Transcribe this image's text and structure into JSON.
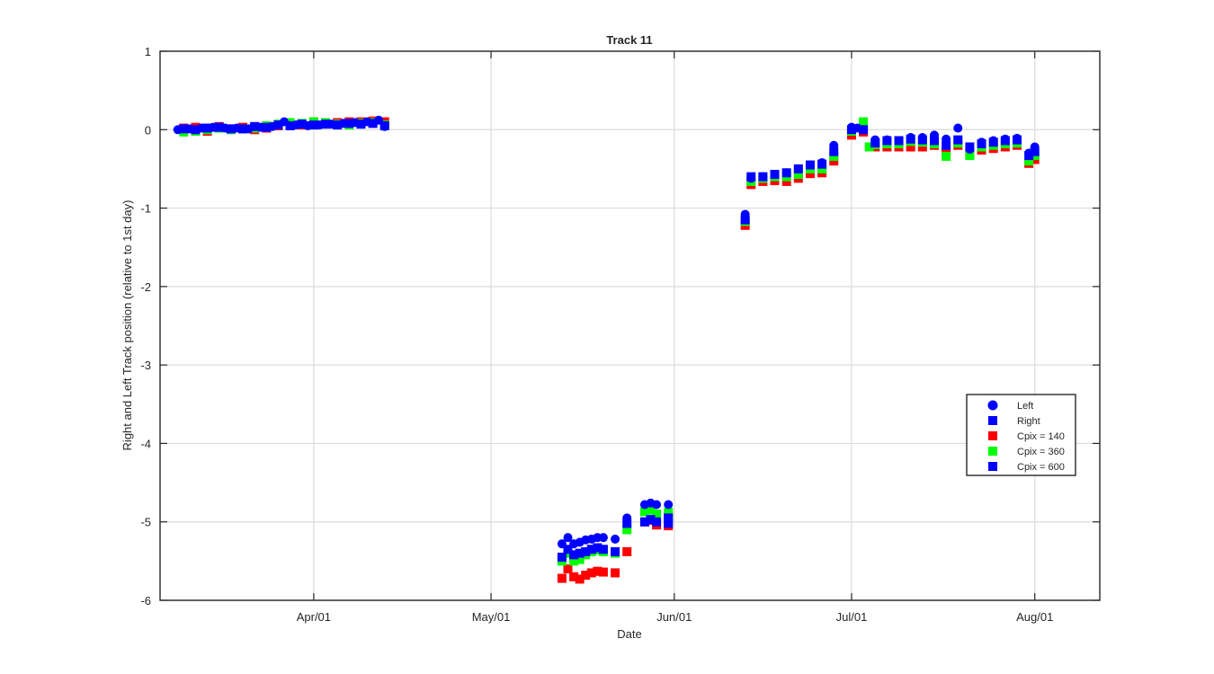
{
  "chart_data": {
    "type": "scatter",
    "title": "Track 11",
    "xlabel": "Date",
    "ylabel": "Right and Left Track position (relative to 1st day)",
    "x_axis_type": "date",
    "xlim": [
      "2015-03-06",
      "2015-08-12"
    ],
    "ylim": [
      -6,
      1
    ],
    "yticks": [
      1,
      0,
      -1,
      -2,
      -3,
      -4,
      -5,
      -6
    ],
    "xticks": [
      {
        "date": "2015-04-01",
        "label": "Apr/01"
      },
      {
        "date": "2015-05-01",
        "label": "May/01"
      },
      {
        "date": "2015-06-01",
        "label": "Jun/01"
      },
      {
        "date": "2015-07-01",
        "label": "Jul/01"
      },
      {
        "date": "2015-08-01",
        "label": "Aug/01"
      }
    ],
    "grid": true,
    "legend_position": "lower-right",
    "legend": [
      {
        "label": "Left",
        "marker": "circle",
        "color": "#0000ff"
      },
      {
        "label": "Right",
        "marker": "square",
        "color": "#0000ff"
      },
      {
        "label": "Cpix = 140",
        "marker": "square",
        "color": "#ff0000"
      },
      {
        "label": "Cpix = 360",
        "marker": "square",
        "color": "#00ff00"
      },
      {
        "label": "Cpix = 600",
        "marker": "square",
        "color": "#0000ff"
      }
    ],
    "series": [
      {
        "name": "Cpix = 140",
        "color": "#ff0000",
        "marker": "square",
        "points": [
          [
            "2015-03-10",
            0.02
          ],
          [
            "2015-03-12",
            0.03
          ],
          [
            "2015-03-14",
            -0.02
          ],
          [
            "2015-03-16",
            0.04
          ],
          [
            "2015-03-18",
            0.01
          ],
          [
            "2015-03-20",
            0.03
          ],
          [
            "2015-03-22",
            0.0
          ],
          [
            "2015-03-24",
            0.02
          ],
          [
            "2015-03-26",
            0.05
          ],
          [
            "2015-03-28",
            0.07
          ],
          [
            "2015-03-30",
            0.06
          ],
          [
            "2015-04-01",
            0.1
          ],
          [
            "2015-04-03",
            0.08
          ],
          [
            "2015-04-05",
            0.09
          ],
          [
            "2015-04-07",
            0.1
          ],
          [
            "2015-04-09",
            0.1
          ],
          [
            "2015-04-11",
            0.11
          ],
          [
            "2015-04-13",
            0.1
          ],
          [
            "2015-05-13",
            -5.72
          ],
          [
            "2015-05-14",
            -5.6
          ],
          [
            "2015-05-15",
            -5.7
          ],
          [
            "2015-05-16",
            -5.73
          ],
          [
            "2015-05-17",
            -5.68
          ],
          [
            "2015-05-18",
            -5.65
          ],
          [
            "2015-05-19",
            -5.63
          ],
          [
            "2015-05-20",
            -5.64
          ],
          [
            "2015-05-22",
            -5.65
          ],
          [
            "2015-05-24",
            -5.38
          ],
          [
            "2015-05-27",
            -5.0
          ],
          [
            "2015-05-28",
            -4.98
          ],
          [
            "2015-05-29",
            -5.04
          ],
          [
            "2015-05-31",
            -4.93
          ],
          [
            "2015-05-31",
            -5.05
          ],
          [
            "2015-06-13",
            -1.22
          ],
          [
            "2015-06-14",
            -0.7
          ],
          [
            "2015-06-16",
            -0.66
          ],
          [
            "2015-06-18",
            -0.65
          ],
          [
            "2015-06-20",
            -0.66
          ],
          [
            "2015-06-22",
            -0.62
          ],
          [
            "2015-06-24",
            -0.56
          ],
          [
            "2015-06-26",
            -0.55
          ],
          [
            "2015-06-28",
            -0.4
          ],
          [
            "2015-07-01",
            -0.07
          ],
          [
            "2015-07-03",
            -0.03
          ],
          [
            "2015-07-05",
            -0.22
          ],
          [
            "2015-07-07",
            -0.22
          ],
          [
            "2015-07-09",
            -0.22
          ],
          [
            "2015-07-11",
            -0.22
          ],
          [
            "2015-07-13",
            -0.22
          ],
          [
            "2015-07-15",
            -0.2
          ],
          [
            "2015-07-17",
            -0.3
          ],
          [
            "2015-07-19",
            -0.2
          ],
          [
            "2015-07-21",
            -0.3
          ],
          [
            "2015-07-23",
            -0.26
          ],
          [
            "2015-07-25",
            -0.24
          ],
          [
            "2015-07-27",
            -0.22
          ],
          [
            "2015-07-29",
            -0.2
          ],
          [
            "2015-07-31",
            -0.43
          ],
          [
            "2015-08-01",
            -0.38
          ]
        ]
      },
      {
        "name": "Cpix = 360",
        "color": "#00ff00",
        "marker": "square",
        "points": [
          [
            "2015-03-10",
            -0.03
          ],
          [
            "2015-03-12",
            -0.02
          ],
          [
            "2015-03-14",
            0.0
          ],
          [
            "2015-03-16",
            0.02
          ],
          [
            "2015-03-18",
            0.0
          ],
          [
            "2015-03-20",
            0.01
          ],
          [
            "2015-03-22",
            0.02
          ],
          [
            "2015-03-24",
            0.05
          ],
          [
            "2015-03-26",
            0.07
          ],
          [
            "2015-03-28",
            0.09
          ],
          [
            "2015-03-30",
            0.08
          ],
          [
            "2015-04-01",
            0.1
          ],
          [
            "2015-04-03",
            0.09
          ],
          [
            "2015-04-05",
            0.07
          ],
          [
            "2015-04-07",
            0.06
          ],
          [
            "2015-04-09",
            0.08
          ],
          [
            "2015-04-11",
            0.09
          ],
          [
            "2015-04-13",
            0.06
          ],
          [
            "2015-05-13",
            -5.5
          ],
          [
            "2015-05-14",
            -5.4
          ],
          [
            "2015-05-15",
            -5.5
          ],
          [
            "2015-05-16",
            -5.48
          ],
          [
            "2015-05-17",
            -5.42
          ],
          [
            "2015-05-18",
            -5.38
          ],
          [
            "2015-05-19",
            -5.36
          ],
          [
            "2015-05-20",
            -5.38
          ],
          [
            "2015-05-22",
            -5.4
          ],
          [
            "2015-05-24",
            -5.1
          ],
          [
            "2015-05-27",
            -4.87
          ],
          [
            "2015-05-28",
            -4.85
          ],
          [
            "2015-05-29",
            -4.9
          ],
          [
            "2015-05-31",
            -4.88
          ],
          [
            "2015-05-31",
            -4.97
          ],
          [
            "2015-06-13",
            -1.17
          ],
          [
            "2015-06-14",
            -0.66
          ],
          [
            "2015-06-16",
            -0.62
          ],
          [
            "2015-06-18",
            -0.6
          ],
          [
            "2015-06-20",
            -0.6
          ],
          [
            "2015-06-22",
            -0.57
          ],
          [
            "2015-06-24",
            -0.5
          ],
          [
            "2015-06-26",
            -0.5
          ],
          [
            "2015-06-28",
            -0.34
          ],
          [
            "2015-07-01",
            -0.02
          ],
          [
            "2015-07-03",
            0.1
          ],
          [
            "2015-07-04",
            -0.22
          ],
          [
            "2015-07-05",
            -0.19
          ],
          [
            "2015-07-07",
            -0.18
          ],
          [
            "2015-07-09",
            -0.18
          ],
          [
            "2015-07-11",
            -0.15
          ],
          [
            "2015-07-13",
            -0.16
          ],
          [
            "2015-07-15",
            -0.18
          ],
          [
            "2015-07-17",
            -0.34
          ],
          [
            "2015-07-19",
            -0.17
          ],
          [
            "2015-07-21",
            -0.33
          ],
          [
            "2015-07-23",
            -0.22
          ],
          [
            "2015-07-25",
            -0.2
          ],
          [
            "2015-07-27",
            -0.18
          ],
          [
            "2015-07-29",
            -0.17
          ],
          [
            "2015-07-31",
            -0.4
          ],
          [
            "2015-08-01",
            -0.33
          ]
        ]
      },
      {
        "name": "Cpix = 600",
        "color": "#0000ff",
        "marker": "square",
        "points": [
          [
            "2015-03-10",
            0.01
          ],
          [
            "2015-03-12",
            0.0
          ],
          [
            "2015-03-14",
            0.02
          ],
          [
            "2015-03-16",
            0.03
          ],
          [
            "2015-03-18",
            0.01
          ],
          [
            "2015-03-20",
            0.01
          ],
          [
            "2015-03-22",
            0.04
          ],
          [
            "2015-03-24",
            0.03
          ],
          [
            "2015-03-26",
            0.06
          ],
          [
            "2015-03-28",
            0.05
          ],
          [
            "2015-03-30",
            0.07
          ],
          [
            "2015-04-01",
            0.06
          ],
          [
            "2015-04-03",
            0.07
          ],
          [
            "2015-04-05",
            0.06
          ],
          [
            "2015-04-07",
            0.08
          ],
          [
            "2015-04-09",
            0.07
          ],
          [
            "2015-04-11",
            0.08
          ],
          [
            "2015-04-13",
            0.05
          ],
          [
            "2015-05-13",
            -5.45
          ],
          [
            "2015-05-14",
            -5.35
          ],
          [
            "2015-05-15",
            -5.42
          ],
          [
            "2015-05-16",
            -5.4
          ],
          [
            "2015-05-17",
            -5.38
          ],
          [
            "2015-05-18",
            -5.35
          ],
          [
            "2015-05-19",
            -5.33
          ],
          [
            "2015-05-20",
            -5.35
          ],
          [
            "2015-05-22",
            -5.38
          ],
          [
            "2015-05-24",
            -5.02
          ],
          [
            "2015-05-27",
            -5.0
          ],
          [
            "2015-05-28",
            -4.97
          ],
          [
            "2015-05-29",
            -5.0
          ],
          [
            "2015-05-31",
            -5.02
          ],
          [
            "2015-05-31",
            -4.95
          ],
          [
            "2015-06-13",
            -1.15
          ],
          [
            "2015-06-14",
            -0.6
          ],
          [
            "2015-06-16",
            -0.6
          ],
          [
            "2015-06-18",
            -0.57
          ],
          [
            "2015-06-20",
            -0.55
          ],
          [
            "2015-06-22",
            -0.5
          ],
          [
            "2015-06-24",
            -0.45
          ],
          [
            "2015-06-26",
            -0.44
          ],
          [
            "2015-06-28",
            -0.28
          ],
          [
            "2015-07-01",
            0.0
          ],
          [
            "2015-07-03",
            0.0
          ],
          [
            "2015-07-05",
            -0.17
          ],
          [
            "2015-07-07",
            -0.14
          ],
          [
            "2015-07-09",
            -0.14
          ],
          [
            "2015-07-11",
            -0.12
          ],
          [
            "2015-07-13",
            -0.13
          ],
          [
            "2015-07-15",
            -0.14
          ],
          [
            "2015-07-17",
            -0.2
          ],
          [
            "2015-07-19",
            -0.13
          ],
          [
            "2015-07-21",
            -0.22
          ],
          [
            "2015-07-23",
            -0.18
          ],
          [
            "2015-07-25",
            -0.16
          ],
          [
            "2015-07-27",
            -0.14
          ],
          [
            "2015-07-29",
            -0.13
          ],
          [
            "2015-07-31",
            -0.33
          ],
          [
            "2015-08-01",
            -0.28
          ]
        ]
      },
      {
        "name": "Left",
        "color": "#0000ff",
        "marker": "circle",
        "points": [
          [
            "2015-03-09",
            0.0
          ],
          [
            "2015-03-11",
            0.01
          ],
          [
            "2015-03-13",
            0.02
          ],
          [
            "2015-03-15",
            0.03
          ],
          [
            "2015-03-17",
            0.02
          ],
          [
            "2015-03-19",
            0.02
          ],
          [
            "2015-03-21",
            0.01
          ],
          [
            "2015-03-23",
            0.03
          ],
          [
            "2015-03-25",
            0.04
          ],
          [
            "2015-03-27",
            0.1
          ],
          [
            "2015-03-29",
            0.06
          ],
          [
            "2015-03-31",
            0.05
          ],
          [
            "2015-04-02",
            0.06
          ],
          [
            "2015-04-04",
            0.07
          ],
          [
            "2015-04-06",
            0.08
          ],
          [
            "2015-04-08",
            0.09
          ],
          [
            "2015-04-10",
            0.1
          ],
          [
            "2015-04-12",
            0.12
          ],
          [
            "2015-04-13",
            0.04
          ],
          [
            "2015-05-13",
            -5.28
          ],
          [
            "2015-05-14",
            -5.2
          ],
          [
            "2015-05-15",
            -5.28
          ],
          [
            "2015-05-16",
            -5.26
          ],
          [
            "2015-05-17",
            -5.23
          ],
          [
            "2015-05-18",
            -5.22
          ],
          [
            "2015-05-19",
            -5.2
          ],
          [
            "2015-05-20",
            -5.2
          ],
          [
            "2015-05-22",
            -5.22
          ],
          [
            "2015-05-24",
            -4.95
          ],
          [
            "2015-05-27",
            -4.78
          ],
          [
            "2015-05-28",
            -4.76
          ],
          [
            "2015-05-29",
            -4.78
          ],
          [
            "2015-05-31",
            -4.78
          ],
          [
            "2015-06-13",
            -1.08
          ],
          [
            "2015-06-14",
            -0.62
          ],
          [
            "2015-06-16",
            -0.6
          ],
          [
            "2015-06-18",
            -0.57
          ],
          [
            "2015-06-20",
            -0.55
          ],
          [
            "2015-06-22",
            -0.5
          ],
          [
            "2015-06-24",
            -0.45
          ],
          [
            "2015-06-26",
            -0.42
          ],
          [
            "2015-06-28",
            -0.2
          ],
          [
            "2015-07-01",
            0.03
          ],
          [
            "2015-07-02",
            0.02
          ],
          [
            "2015-07-03",
            0.0
          ],
          [
            "2015-07-05",
            -0.13
          ],
          [
            "2015-07-07",
            -0.13
          ],
          [
            "2015-07-09",
            -0.14
          ],
          [
            "2015-07-11",
            -0.1
          ],
          [
            "2015-07-13",
            -0.1
          ],
          [
            "2015-07-15",
            -0.07
          ],
          [
            "2015-07-17",
            -0.12
          ],
          [
            "2015-07-19",
            0.02
          ],
          [
            "2015-07-21",
            -0.25
          ],
          [
            "2015-07-23",
            -0.16
          ],
          [
            "2015-07-25",
            -0.14
          ],
          [
            "2015-07-27",
            -0.12
          ],
          [
            "2015-07-29",
            -0.11
          ],
          [
            "2015-07-31",
            -0.3
          ],
          [
            "2015-08-01",
            -0.22
          ]
        ]
      }
    ]
  }
}
